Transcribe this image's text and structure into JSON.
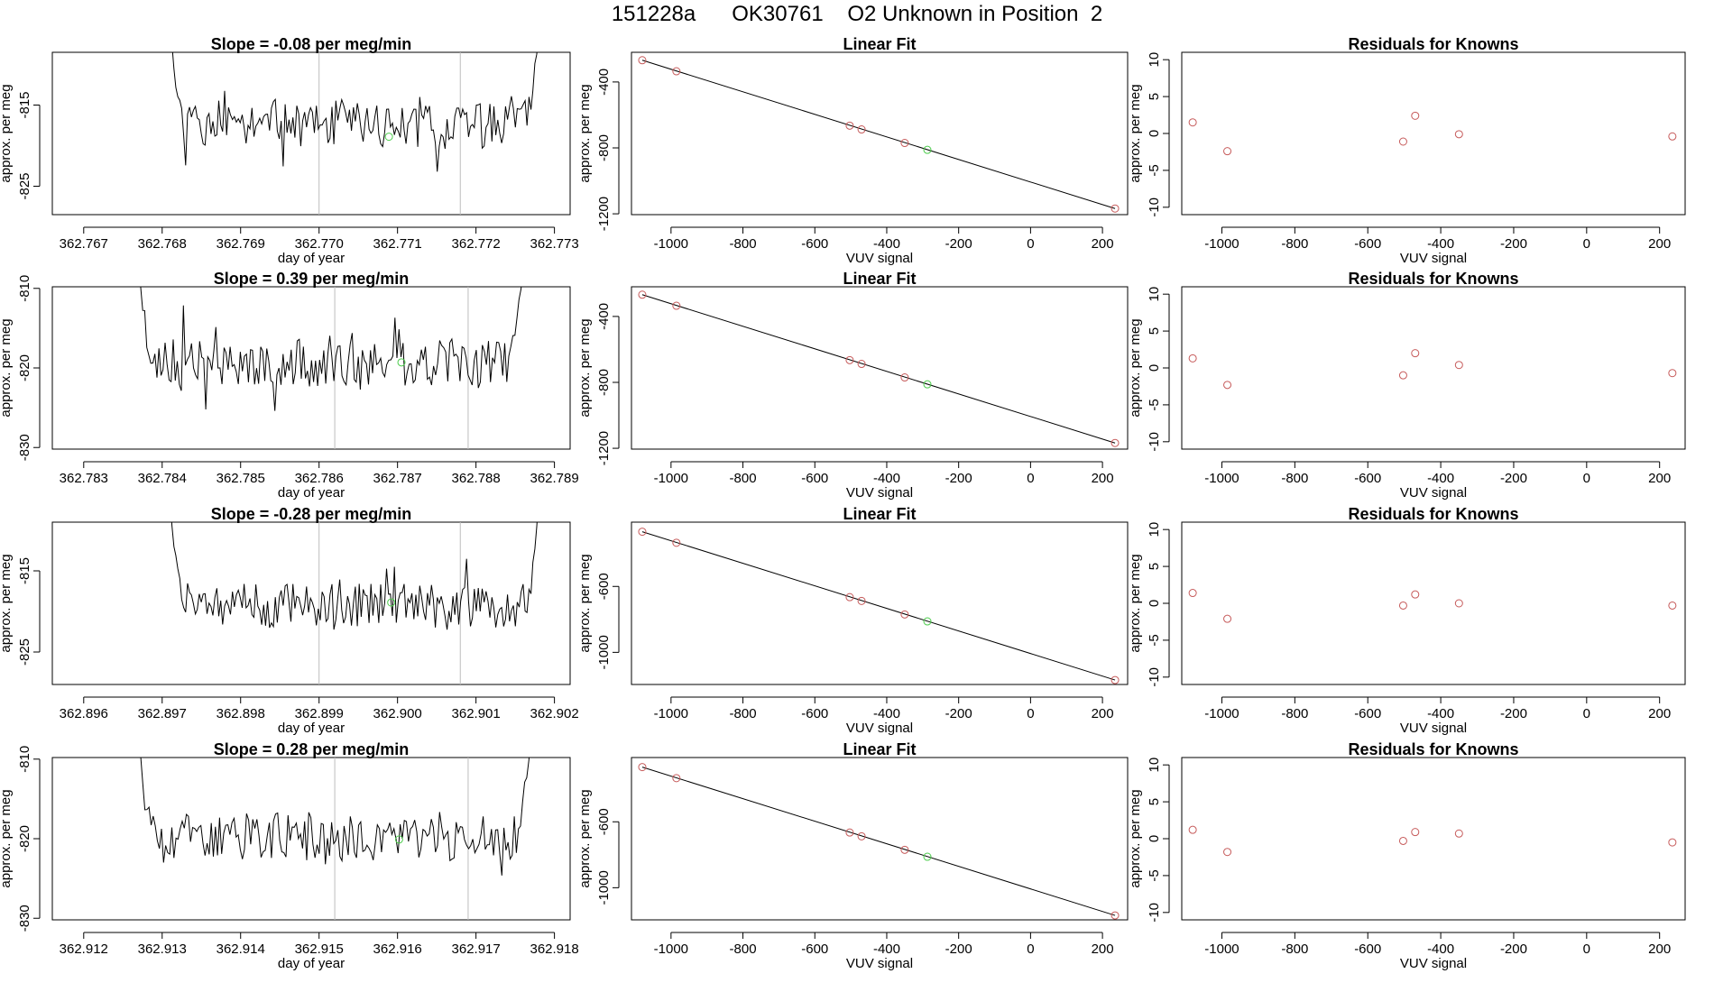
{
  "header": {
    "title": "151228a      OK30761    O2 Unknown in Position  2"
  },
  "chart_data": [
    {
      "type": "line",
      "row": 0,
      "panel": "time-series",
      "title": "Slope =  -0.08  per meg/min",
      "xlabel": "day of year",
      "ylabel": "approx. per meg",
      "xlim": [
        362.7666,
        362.7732
      ],
      "ylim": [
        -828.5,
        -808.5
      ],
      "xticks": [
        362.767,
        362.768,
        362.769,
        362.77,
        362.771,
        362.772,
        362.773
      ],
      "xtick_labels": [
        "362.767",
        "362.768",
        "362.769",
        "362.770",
        "362.771",
        "362.772",
        "362.773"
      ],
      "yticks": [
        -815,
        -825
      ],
      "ytick_labels": [
        "-815",
        "-825"
      ],
      "vlines": [
        362.77,
        362.7718
      ],
      "series": [
        {
          "name": "signal",
          "x_start": 362.7681,
          "x_end": 362.7728,
          "base": -817.3,
          "amplitude": 2.3,
          "seed": 11,
          "rise_start": -804,
          "rise_end": -806
        }
      ],
      "unknown_point": {
        "x": 362.77089,
        "y": -818.9
      }
    },
    {
      "type": "scatter",
      "row": 0,
      "panel": "linear-fit",
      "title": "Linear Fit",
      "xlabel": "VUV signal",
      "ylabel": "approx. per meg",
      "xlim": [
        -1110,
        270
      ],
      "ylim": [
        -1205,
        -220
      ],
      "xticks": [
        -1000,
        -800,
        -600,
        -400,
        -200,
        0,
        200
      ],
      "xtick_labels": [
        "-1000",
        "-800",
        "-600",
        "-400",
        "-200",
        "0",
        "200"
      ],
      "yticks": [
        -400,
        -800,
        -1200
      ],
      "ytick_labels": [
        "-400",
        "-800",
        "-1200"
      ],
      "line": {
        "x": [
          -1080,
          235
        ],
        "y": [
          -268,
          -1168
        ]
      },
      "knowns": {
        "x": [
          -1080,
          -985,
          -503,
          -470,
          -350,
          235
        ],
        "y": [
          -268,
          -335,
          -665,
          -688,
          -770,
          -1168
        ]
      },
      "unknown": {
        "x": -287,
        "y": -812
      }
    },
    {
      "type": "scatter",
      "row": 0,
      "panel": "residuals",
      "title": "Residuals for Knowns",
      "xlabel": "VUV signal",
      "ylabel": "approx. per meg",
      "xlim": [
        -1110,
        270
      ],
      "ylim": [
        -11,
        11
      ],
      "xticks": [
        -1000,
        -800,
        -600,
        -400,
        -200,
        0,
        200
      ],
      "xtick_labels": [
        "-1000",
        "-800",
        "-600",
        "-400",
        "-200",
        "0",
        "200"
      ],
      "yticks": [
        10,
        5,
        0,
        -5,
        -10
      ],
      "ytick_labels": [
        "10",
        "5",
        "0",
        "-5",
        "-10"
      ],
      "points": {
        "x": [
          -1080,
          -985,
          -503,
          -470,
          -350,
          235
        ],
        "y": [
          1.5,
          -2.4,
          -1.1,
          2.4,
          -0.1,
          -0.4
        ]
      }
    },
    {
      "type": "line",
      "row": 1,
      "panel": "time-series",
      "title": "Slope =  0.39  per meg/min",
      "xlabel": "day of year",
      "ylabel": "approx. per meg",
      "xlim": [
        362.7826,
        362.7892
      ],
      "ylim": [
        -830.2,
        -809.8
      ],
      "xticks": [
        362.783,
        362.784,
        362.785,
        362.786,
        362.787,
        362.788,
        362.789
      ],
      "xtick_labels": [
        "362.783",
        "362.784",
        "362.785",
        "362.786",
        "362.787",
        "362.788",
        "362.789"
      ],
      "yticks": [
        -810,
        -820,
        -830
      ],
      "ytick_labels": [
        "-810",
        "-820",
        "-830"
      ],
      "vlines": [
        362.7862,
        362.7879
      ],
      "series": [
        {
          "name": "signal",
          "x_start": 362.7837,
          "x_end": 362.7886,
          "base": -819.5,
          "amplitude": 2.6,
          "seed": 23,
          "rise_start": -807,
          "rise_end": -807
        }
      ],
      "unknown_point": {
        "x": 362.78705,
        "y": -819.3
      }
    },
    {
      "type": "scatter",
      "row": 1,
      "panel": "linear-fit",
      "title": "Linear Fit",
      "xlabel": "VUV signal",
      "ylabel": "approx. per meg",
      "xlim": [
        -1110,
        270
      ],
      "ylim": [
        -1205,
        -220
      ],
      "xticks": [
        -1000,
        -800,
        -600,
        -400,
        -200,
        0,
        200
      ],
      "xtick_labels": [
        "-1000",
        "-800",
        "-600",
        "-400",
        "-200",
        "0",
        "200"
      ],
      "yticks": [
        -400,
        -800,
        -1200
      ],
      "ytick_labels": [
        "-400",
        "-800",
        "-1200"
      ],
      "line": {
        "x": [
          -1080,
          235
        ],
        "y": [
          -268,
          -1168
        ]
      },
      "knowns": {
        "x": [
          -1080,
          -985,
          -503,
          -470,
          -350,
          235
        ],
        "y": [
          -268,
          -335,
          -665,
          -688,
          -770,
          -1168
        ]
      },
      "unknown": {
        "x": -287,
        "y": -812
      }
    },
    {
      "type": "scatter",
      "row": 1,
      "panel": "residuals",
      "title": "Residuals for Knowns",
      "xlabel": "VUV signal",
      "ylabel": "approx. per meg",
      "xlim": [
        -1110,
        270
      ],
      "ylim": [
        -11,
        11
      ],
      "xticks": [
        -1000,
        -800,
        -600,
        -400,
        -200,
        0,
        200
      ],
      "xtick_labels": [
        "-1000",
        "-800",
        "-600",
        "-400",
        "-200",
        "0",
        "200"
      ],
      "yticks": [
        10,
        5,
        0,
        -5,
        -10
      ],
      "ytick_labels": [
        "10",
        "5",
        "0",
        "-5",
        "-10"
      ],
      "points": {
        "x": [
          -1080,
          -985,
          -503,
          -470,
          -350,
          235
        ],
        "y": [
          1.3,
          -2.3,
          -1.0,
          2.0,
          0.4,
          -0.7
        ]
      }
    },
    {
      "type": "line",
      "row": 2,
      "panel": "time-series",
      "title": "Slope =  -0.28  per meg/min",
      "xlabel": "day of year",
      "ylabel": "approx. per meg",
      "xlim": [
        362.8956,
        362.9022
      ],
      "ylim": [
        -829,
        -809
      ],
      "xticks": [
        362.896,
        362.897,
        362.898,
        362.899,
        362.9,
        362.901,
        362.902
      ],
      "xtick_labels": [
        "362.896",
        "362.897",
        "362.898",
        "362.899",
        "362.900",
        "362.901",
        "362.902"
      ],
      "yticks": [
        -815,
        -825
      ],
      "ytick_labels": [
        "-815",
        "-825"
      ],
      "vlines": [
        362.899,
        362.9008
      ],
      "series": [
        {
          "name": "signal",
          "x_start": 362.8971,
          "x_end": 362.9018,
          "base": -819.3,
          "amplitude": 2.5,
          "seed": 37,
          "rise_start": -806,
          "rise_end": -806
        }
      ],
      "unknown_point": {
        "x": 362.89992,
        "y": -818.9
      }
    },
    {
      "type": "scatter",
      "row": 2,
      "panel": "linear-fit",
      "title": "Linear Fit",
      "xlabel": "VUV signal",
      "ylabel": "approx. per meg",
      "xlim": [
        -1110,
        270
      ],
      "ylim": [
        -1195,
        -210
      ],
      "xticks": [
        -1000,
        -800,
        -600,
        -400,
        -200,
        0,
        200
      ],
      "xtick_labels": [
        "-1000",
        "-800",
        "-600",
        "-400",
        "-200",
        "0",
        "200"
      ],
      "yticks": [
        -600,
        -1000
      ],
      "ytick_labels": [
        "-600",
        "-1000"
      ],
      "line": {
        "x": [
          -1080,
          235
        ],
        "y": [
          -268,
          -1168
        ]
      },
      "knowns": {
        "x": [
          -1080,
          -985,
          -503,
          -470,
          -350,
          235
        ],
        "y": [
          -268,
          -335,
          -665,
          -688,
          -770,
          -1168
        ]
      },
      "unknown": {
        "x": -287,
        "y": -812
      }
    },
    {
      "type": "scatter",
      "row": 2,
      "panel": "residuals",
      "title": "Residuals for Knowns",
      "xlabel": "VUV signal",
      "ylabel": "approx. per meg",
      "xlim": [
        -1110,
        270
      ],
      "ylim": [
        -11,
        11
      ],
      "xticks": [
        -1000,
        -800,
        -600,
        -400,
        -200,
        0,
        200
      ],
      "xtick_labels": [
        "-1000",
        "-800",
        "-600",
        "-400",
        "-200",
        "0",
        "200"
      ],
      "yticks": [
        10,
        5,
        0,
        -5,
        -10
      ],
      "ytick_labels": [
        "10",
        "5",
        "0",
        "-5",
        "-10"
      ],
      "points": {
        "x": [
          -1080,
          -985,
          -503,
          -470,
          -350,
          235
        ],
        "y": [
          1.4,
          -2.1,
          -0.3,
          1.2,
          0.0,
          -0.3
        ]
      }
    },
    {
      "type": "line",
      "row": 3,
      "panel": "time-series",
      "title": "Slope =  0.28  per meg/min",
      "xlabel": "day of year",
      "ylabel": "approx. per meg",
      "xlim": [
        362.9116,
        362.9182
      ],
      "ylim": [
        -830.2,
        -809.8
      ],
      "xticks": [
        362.912,
        362.913,
        362.914,
        362.915,
        362.916,
        362.917,
        362.918
      ],
      "xtick_labels": [
        "362.912",
        "362.913",
        "362.914",
        "362.915",
        "362.916",
        "362.917",
        "362.918"
      ],
      "yticks": [
        -810,
        -820,
        -830
      ],
      "ytick_labels": [
        "-810",
        "-820",
        "-830"
      ],
      "vlines": [
        362.9152,
        362.9169
      ],
      "series": [
        {
          "name": "signal",
          "x_start": 362.9127,
          "x_end": 362.9177,
          "base": -819.8,
          "amplitude": 2.6,
          "seed": 53,
          "rise_start": -807,
          "rise_end": -807
        }
      ],
      "unknown_point": {
        "x": 362.91602,
        "y": -820.1
      }
    },
    {
      "type": "scatter",
      "row": 3,
      "panel": "linear-fit",
      "title": "Linear Fit",
      "xlabel": "VUV signal",
      "ylabel": "approx. per meg",
      "xlim": [
        -1110,
        270
      ],
      "ylim": [
        -1195,
        -210
      ],
      "xticks": [
        -1000,
        -800,
        -600,
        -400,
        -200,
        0,
        200
      ],
      "xtick_labels": [
        "-1000",
        "-800",
        "-600",
        "-400",
        "-200",
        "0",
        "200"
      ],
      "yticks": [
        -600,
        -1000
      ],
      "ytick_labels": [
        "-600",
        "-1000"
      ],
      "line": {
        "x": [
          -1080,
          235
        ],
        "y": [
          -268,
          -1168
        ]
      },
      "knowns": {
        "x": [
          -1080,
          -985,
          -503,
          -470,
          -350,
          235
        ],
        "y": [
          -268,
          -335,
          -665,
          -688,
          -770,
          -1168
        ]
      },
      "unknown": {
        "x": -287,
        "y": -812
      }
    },
    {
      "type": "scatter",
      "row": 3,
      "panel": "residuals",
      "title": "Residuals for Knowns",
      "xlabel": "VUV signal",
      "ylabel": "approx. per meg",
      "xlim": [
        -1110,
        270
      ],
      "ylim": [
        -11,
        11
      ],
      "xticks": [
        -1000,
        -800,
        -600,
        -400,
        -200,
        0,
        200
      ],
      "xtick_labels": [
        "-1000",
        "-800",
        "-600",
        "-400",
        "-200",
        "0",
        "200"
      ],
      "yticks": [
        10,
        5,
        0,
        -5,
        -10
      ],
      "ytick_labels": [
        "10",
        "5",
        "0",
        "-5",
        "-10"
      ],
      "points": {
        "x": [
          -1080,
          -985,
          -503,
          -470,
          -350,
          235
        ],
        "y": [
          1.2,
          -1.8,
          -0.3,
          0.9,
          0.7,
          -0.5
        ]
      }
    }
  ],
  "colors": {
    "known_point": "#c65a5a",
    "unknown_point": "#4ccc4c",
    "axis": "#000000",
    "vline": "#bdbdbd"
  }
}
